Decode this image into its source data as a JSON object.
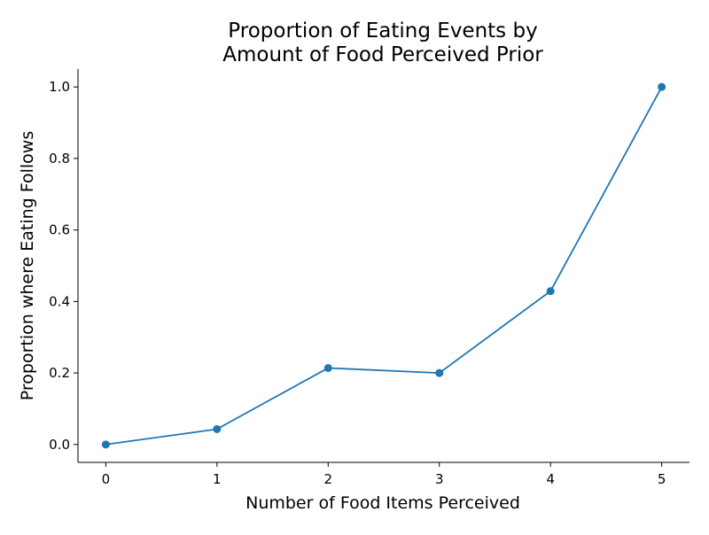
{
  "chart_data": {
    "type": "line",
    "title_lines": [
      "Proportion of Eating Events by",
      "Amount of Food Perceived Prior"
    ],
    "xlabel": "Number of Food Items Perceived",
    "ylabel": "Proportion where Eating Follows",
    "x": [
      0,
      1,
      2,
      3,
      4,
      5
    ],
    "series": [
      {
        "values": [
          0.0,
          0.043,
          0.214,
          0.2,
          0.429,
          1.0
        ],
        "color": "#1f77b4",
        "marker": "circle"
      }
    ],
    "xlim": [
      -0.25,
      5.25
    ],
    "ylim": [
      -0.05,
      1.05
    ],
    "xticks": [
      0,
      1,
      2,
      3,
      4,
      5
    ],
    "xtick_labels": [
      "0",
      "1",
      "2",
      "3",
      "4",
      "5"
    ],
    "yticks": [
      0.0,
      0.2,
      0.4,
      0.6,
      0.8,
      1.0
    ],
    "ytick_labels": [
      "0.0",
      "0.2",
      "0.4",
      "0.6",
      "0.8",
      "1.0"
    ],
    "grid": false,
    "spines": [
      "left",
      "bottom"
    ]
  }
}
